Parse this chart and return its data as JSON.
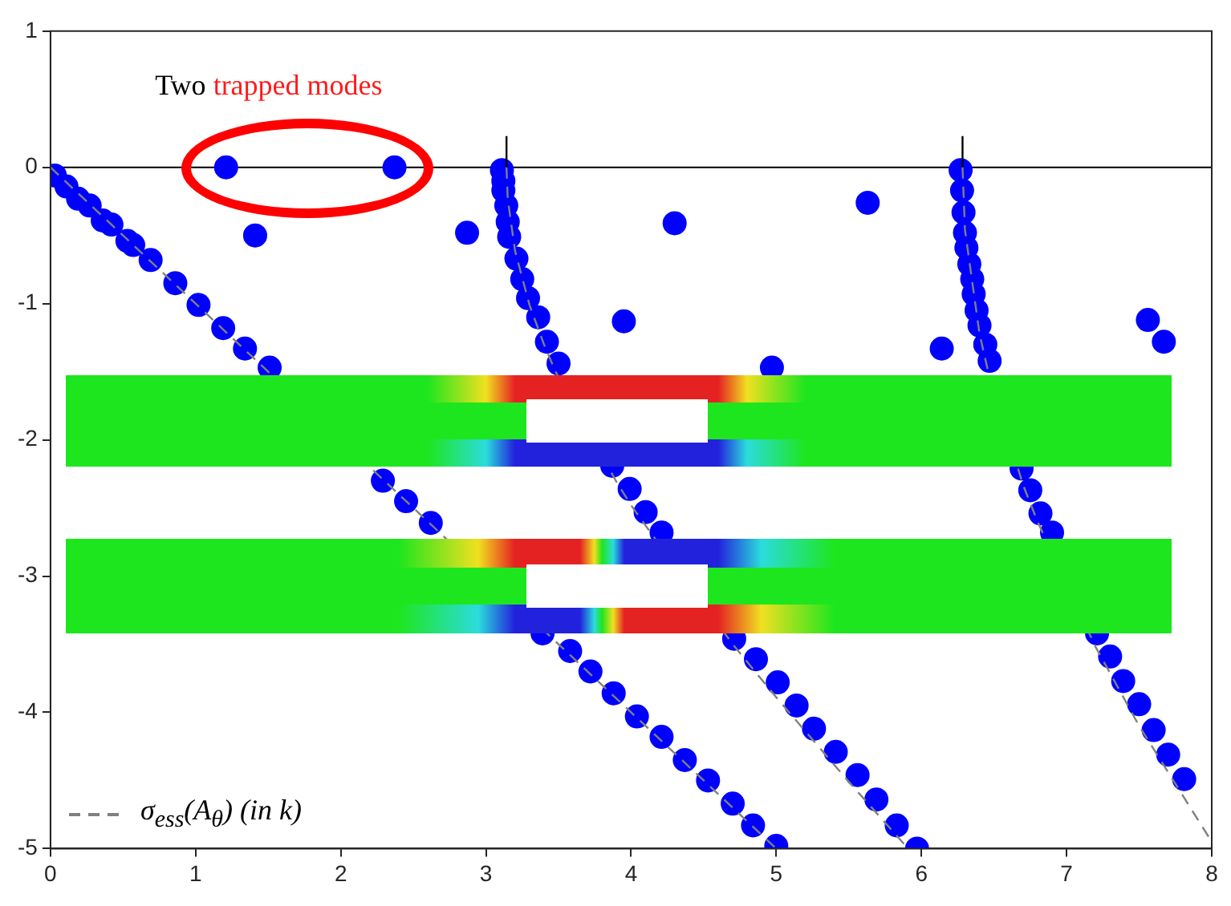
{
  "chart_data": {
    "type": "scatter",
    "series": [
      {
        "color": "#0000ff",
        "marker": "circle",
        "x": [
          0.03,
          0.11,
          0.19,
          0.27,
          0.36,
          0.42,
          0.53,
          0.57,
          0.69,
          0.86,
          1.02,
          1.19,
          1.34,
          1.51,
          2.29,
          2.45,
          2.62,
          3.39,
          3.58,
          3.72,
          3.88,
          4.04,
          4.21,
          4.37,
          4.53,
          4.7,
          4.84,
          5.0,
          3.11,
          3.12,
          3.12,
          3.14,
          3.15,
          3.16,
          3.21,
          3.25,
          3.29,
          3.36,
          3.42,
          3.5,
          3.87,
          3.99,
          4.1,
          4.21,
          4.71,
          4.86,
          5.01,
          5.14,
          5.26,
          5.41,
          5.56,
          5.69,
          5.83,
          5.97,
          6.27,
          6.28,
          6.29,
          6.3,
          6.31,
          6.33,
          6.35,
          6.36,
          6.38,
          6.4,
          6.44,
          6.47,
          6.69,
          6.75,
          6.82,
          6.9,
          7.21,
          7.3,
          7.39,
          7.5,
          7.6,
          7.7,
          7.81,
          1.21,
          2.37,
          1.41,
          2.87,
          4.3,
          3.95,
          5.63,
          6.14,
          7.56,
          7.67,
          4.97
        ],
        "values": [
          -0.06,
          -0.14,
          -0.23,
          -0.28,
          -0.39,
          -0.42,
          -0.54,
          -0.57,
          -0.68,
          -0.85,
          -1.01,
          -1.18,
          -1.33,
          -1.47,
          -2.3,
          -2.45,
          -2.61,
          -3.42,
          -3.55,
          -3.7,
          -3.86,
          -4.03,
          -4.18,
          -4.35,
          -4.5,
          -4.67,
          -4.83,
          -4.98,
          -0.02,
          -0.1,
          -0.17,
          -0.28,
          -0.4,
          -0.51,
          -0.67,
          -0.82,
          -0.96,
          -1.1,
          -1.28,
          -1.44,
          -2.19,
          -2.36,
          -2.53,
          -2.68,
          -3.46,
          -3.61,
          -3.78,
          -3.95,
          -4.12,
          -4.29,
          -4.46,
          -4.64,
          -4.83,
          -5.0,
          -0.02,
          -0.17,
          -0.33,
          -0.48,
          -0.59,
          -0.71,
          -0.82,
          -0.93,
          -1.05,
          -1.16,
          -1.3,
          -1.42,
          -2.21,
          -2.37,
          -2.54,
          -2.68,
          -3.42,
          -3.59,
          -3.77,
          -3.94,
          -4.13,
          -4.31,
          -4.49,
          0,
          0,
          -0.5,
          -0.48,
          -0.41,
          -1.13,
          -0.26,
          -1.33,
          -1.12,
          -1.28,
          -1.47
        ]
      },
      {
        "type": "line",
        "name": "σ$_{ess}$(A$_{θ}$) (in k)",
        "color": "#808080",
        "line_style": "dashed",
        "x": [
          0,
          1.5,
          2.25,
          2.7,
          3.45,
          5
        ],
        "values": [
          0,
          -1.5,
          -2.25,
          -2.7,
          -3.45,
          -5
        ]
      },
      {
        "type": "line",
        "color": "#808080",
        "line_style": "dashed",
        "x": [
          3.1416,
          3.15,
          3.2,
          3.3,
          3.4,
          3.48,
          3.9,
          4.0,
          4.1,
          4.7,
          5.0,
          5.5,
          5.9
        ],
        "values": [
          0,
          -0.23,
          -0.61,
          -1.01,
          -1.3,
          -1.5,
          -2.31,
          -2.48,
          -2.63,
          -3.5,
          -3.89,
          -4.51,
          -4.99
        ]
      },
      {
        "type": "line",
        "color": "#808080",
        "line_style": "dashed",
        "x": [
          6.2832,
          6.3,
          6.4,
          6.46,
          6.7,
          6.8,
          7.2,
          7.5,
          8.0
        ],
        "values": [
          0,
          -0.46,
          -1.22,
          -1.5,
          -2.33,
          -2.6,
          -3.52,
          -4.1,
          -4.95
        ]
      },
      {
        "type": "line",
        "color": "#000000",
        "line_style": "solid",
        "x": [
          3.1416,
          3.1416
        ],
        "values": [
          0,
          0.23
        ]
      },
      {
        "type": "line",
        "color": "#000000",
        "line_style": "solid",
        "x": [
          6.2832,
          6.2832
        ],
        "values": [
          0,
          0.23
        ]
      }
    ],
    "xlim": [
      0,
      8
    ],
    "xticks": [
      0,
      1,
      2,
      3,
      4,
      5,
      6,
      7,
      8
    ],
    "ylim": [
      -5,
      1
    ],
    "yticks": [
      -5,
      -4,
      -3,
      -2,
      -1,
      0,
      1
    ],
    "ref_lines": [
      {
        "axis": "y",
        "value": 0,
        "color": "#000000"
      }
    ],
    "annotations": [
      "Two",
      "trapped modes"
    ],
    "legend": "bottom left"
  }
}
